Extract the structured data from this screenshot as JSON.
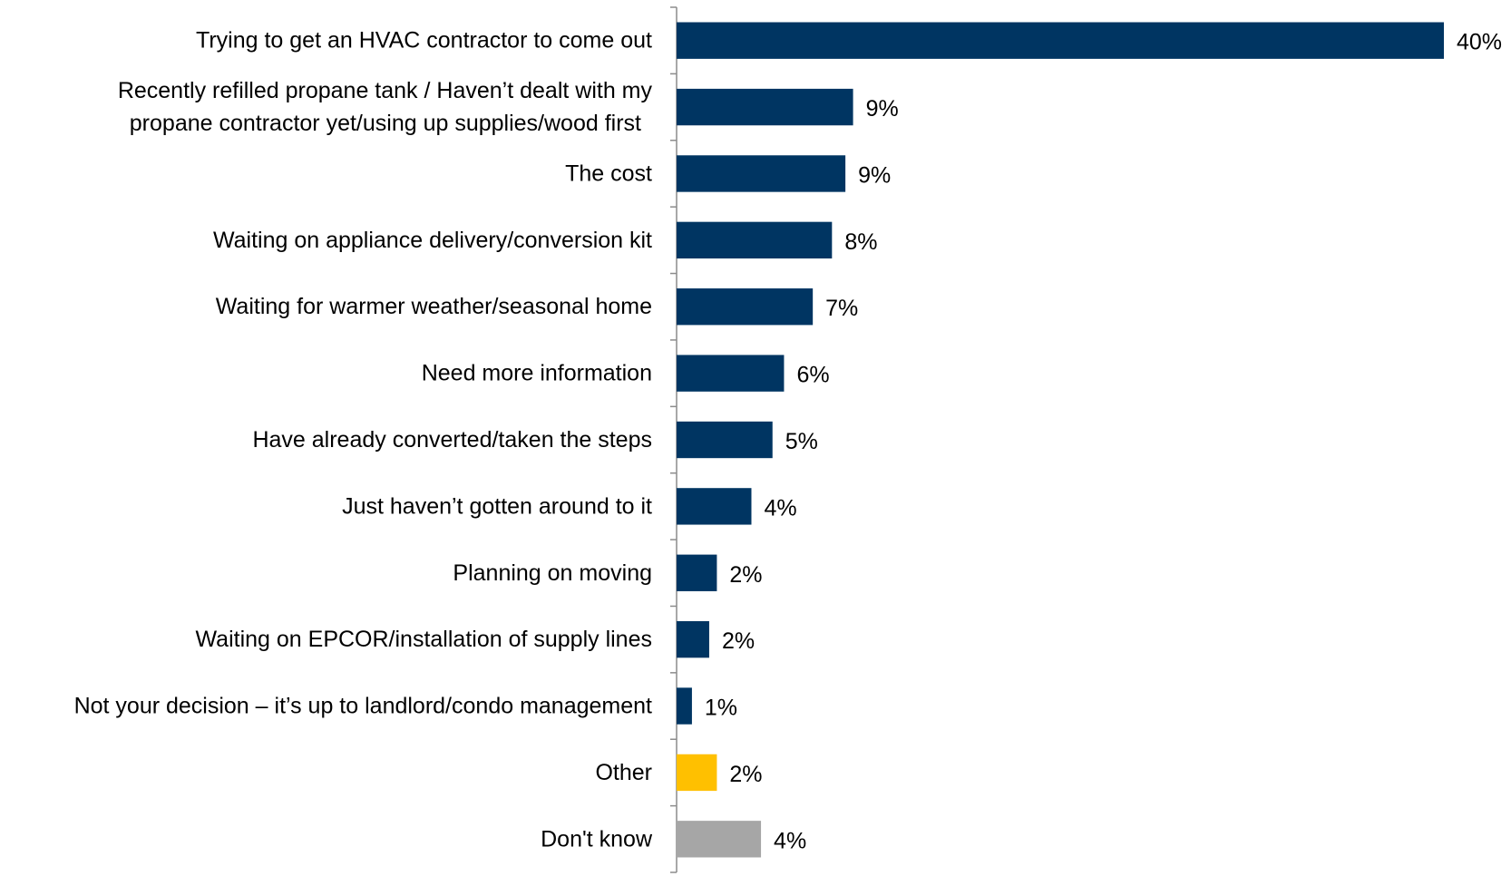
{
  "chart_data": {
    "type": "bar",
    "orientation": "horizontal",
    "title": "",
    "xlabel": "",
    "ylabel": "",
    "xlim": [
      0,
      40
    ],
    "grid": false,
    "legend": "none",
    "value_suffix": "%",
    "categories": [
      {
        "label": [
          "Trying to get an HVAC contractor to come out"
        ],
        "value": 40,
        "display": "40%",
        "color": "#003562"
      },
      {
        "label": [
          "Recently refilled propane tank / Haven’t dealt with my",
          "propane contractor yet/using up supplies/wood first"
        ],
        "value": 9.2,
        "display": "9%",
        "color": "#003562"
      },
      {
        "label": [
          "The cost"
        ],
        "value": 8.8,
        "display": "9%",
        "color": "#003562"
      },
      {
        "label": [
          "Waiting on appliance delivery/conversion kit"
        ],
        "value": 8.1,
        "display": "8%",
        "color": "#003562"
      },
      {
        "label": [
          "Waiting for warmer weather/seasonal home"
        ],
        "value": 7.1,
        "display": "7%",
        "color": "#003562"
      },
      {
        "label": [
          "Need more information"
        ],
        "value": 5.6,
        "display": "6%",
        "color": "#003562"
      },
      {
        "label": [
          "Have already converted/taken the steps"
        ],
        "value": 5.0,
        "display": "5%",
        "color": "#003562"
      },
      {
        "label": [
          "Just haven’t gotten around to it"
        ],
        "value": 3.9,
        "display": "4%",
        "color": "#003562"
      },
      {
        "label": [
          "Planning on moving"
        ],
        "value": 2.1,
        "display": "2%",
        "color": "#003562"
      },
      {
        "label": [
          "Waiting on EPCOR/installation of supply lines"
        ],
        "value": 1.7,
        "display": "2%",
        "color": "#003562"
      },
      {
        "label": [
          "Not your decision – it’s up to landlord/condo management"
        ],
        "value": 0.8,
        "display": "1%",
        "color": "#003562"
      },
      {
        "label": [
          "Other"
        ],
        "value": 2.1,
        "display": "2%",
        "color": "#FFC000"
      },
      {
        "label": [
          "Don't know"
        ],
        "value": 4.4,
        "display": "4%",
        "color": "#A6A6A6"
      }
    ]
  }
}
